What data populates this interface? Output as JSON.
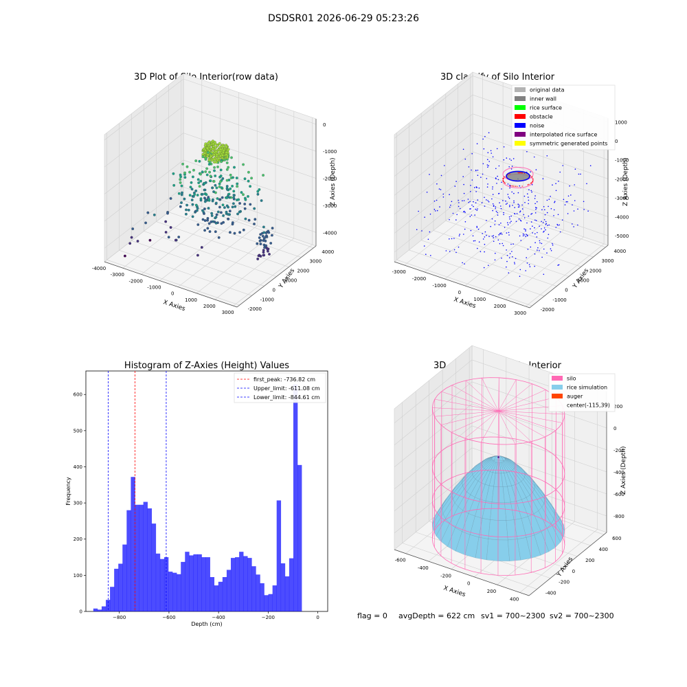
{
  "figure_title": "DSDSR01 2026-06-29 05:23:26",
  "footer": {
    "flag": "flag = 0",
    "avg_depth": "avgDepth = 622 cm",
    "sv1": "sv1 = 700~2300",
    "sv2": "sv2 = 700~2300"
  },
  "chart_data": [
    {
      "type": "scatter",
      "title": "3D Plot of Silo Interior(row data)",
      "xlabel": "X Axies",
      "ylabel": "Y Axies",
      "zlabel": "Z Axies (Depth)",
      "x_ticks": [
        -4000,
        -3000,
        -2000,
        -1000,
        0,
        1000,
        2000,
        3000
      ],
      "y_ticks": [
        -2000,
        -1000,
        0,
        1000,
        2000,
        3000,
        4000
      ],
      "z_ticks": [
        -4000,
        -3000,
        -2000,
        -1000,
        0
      ],
      "xlim": [
        -4000,
        3200
      ],
      "ylim": [
        -2200,
        4200
      ],
      "zlim": [
        -4500,
        200
      ],
      "colormap": "viridis",
      "grid": true
    },
    {
      "type": "scatter",
      "title": "3D classify of Silo Interior",
      "xlabel": "X Axies",
      "ylabel": "Y Axies",
      "zlabel": "Z Axies (Depth)",
      "x_ticks": [
        -3000,
        -2000,
        -1000,
        0,
        1000,
        2000,
        3000
      ],
      "y_ticks": [
        -2000,
        -1000,
        0,
        1000,
        2000,
        3000,
        4000
      ],
      "z_ticks": [
        -5000,
        -4000,
        -3000,
        -2000,
        -1000,
        0,
        1000
      ],
      "xlim": [
        -3500,
        3200
      ],
      "ylim": [
        -2200,
        4200
      ],
      "zlim": [
        -5500,
        1200
      ],
      "legend_placement": "top-right",
      "legend": [
        {
          "label": "original data",
          "color": "#b3b3b3"
        },
        {
          "label": "inner wall",
          "color": "#808080"
        },
        {
          "label": "rice surface",
          "color": "#00ff00"
        },
        {
          "label": "obstacle",
          "color": "#ff0000"
        },
        {
          "label": "noise",
          "color": "#0000ff"
        },
        {
          "label": "interpolated rice surface",
          "color": "#800080"
        },
        {
          "label": "symmetric generated points",
          "color": "#ffff00"
        }
      ],
      "grid": true
    },
    {
      "type": "bar",
      "title": "Histogram of Z-Axies (Height) Values",
      "xlabel": "Depth (cm)",
      "ylabel": "Frequency",
      "xlim": [
        -935,
        40
      ],
      "ylim": [
        0,
        665
      ],
      "x_ticks": [
        -800,
        -600,
        -400,
        -200,
        0
      ],
      "y_ticks": [
        0,
        100,
        200,
        300,
        400,
        500,
        600
      ],
      "bin_start": -905,
      "bin_width": 16.8,
      "values": [
        8,
        5,
        14,
        32,
        68,
        118,
        132,
        185,
        280,
        372,
        295,
        295,
        303,
        285,
        243,
        160,
        145,
        150,
        110,
        107,
        103,
        137,
        165,
        155,
        158,
        158,
        150,
        150,
        95,
        72,
        82,
        95,
        115,
        148,
        150,
        165,
        153,
        148,
        125,
        102,
        78,
        45,
        48,
        72,
        307,
        133,
        97,
        147,
        628,
        405
      ],
      "bar_color": "#0000ff",
      "bar_alpha": 0.7,
      "lines": [
        {
          "label": "first_peak: -736.82 cm",
          "x": -736.82,
          "color": "#ff0000"
        },
        {
          "label": "Upper_limit: -611.08 cm",
          "x": -611.08,
          "color": "#0000ff"
        },
        {
          "label": "Lower_limit: -844.61 cm",
          "x": -844.61,
          "color": "#0000ff"
        }
      ],
      "legend_placement": "top-right"
    },
    {
      "type": "area",
      "title": "3D simulation of Silo Interior",
      "xlabel": "X Axies",
      "ylabel": "Y Axies",
      "zlabel": "Z Axies (Depth)",
      "x_ticks": [
        -600,
        -400,
        -200,
        0,
        200,
        400
      ],
      "y_ticks": [
        -400,
        -200,
        0,
        200,
        400,
        600
      ],
      "z_ticks": [
        -800,
        -600,
        -400,
        -200,
        0,
        200
      ],
      "xlim": [
        -700,
        480
      ],
      "ylim": [
        -520,
        640
      ],
      "zlim": [
        -950,
        330
      ],
      "legend_placement": "top-right",
      "legend": [
        {
          "label": "silo",
          "color": "#ff69b4"
        },
        {
          "label": "rice simulation",
          "color": "#87ceeb"
        },
        {
          "label": "auger",
          "color": "#ff4500"
        },
        {
          "label": "center(-115,39)",
          "color": ""
        }
      ],
      "grid": true
    }
  ]
}
